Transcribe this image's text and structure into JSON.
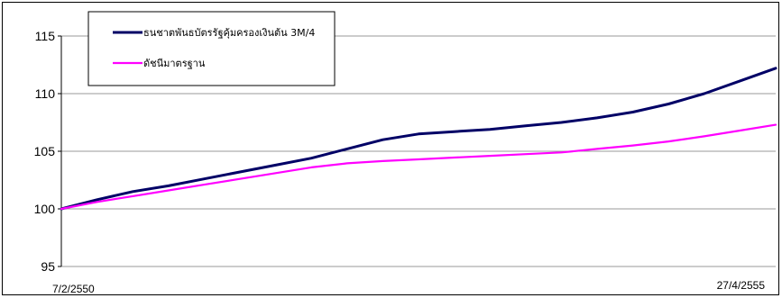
{
  "chart_data": {
    "type": "line",
    "title": "",
    "xlabel": "",
    "ylabel": "",
    "ylim": [
      95,
      115
    ],
    "y_ticks": [
      95,
      100,
      105,
      110,
      115
    ],
    "y_tick_labels": [
      "95",
      "100",
      "105",
      "110",
      "115"
    ],
    "x_tick_labels": [
      "7/2/2550",
      "27/4/2555"
    ],
    "grid": "horizontal",
    "legend_position": "top-left",
    "x": [
      0,
      5,
      10,
      15,
      20,
      25,
      30,
      35,
      40,
      45,
      50,
      55,
      60,
      65,
      70,
      75,
      80,
      85,
      90,
      95,
      100
    ],
    "series": [
      {
        "name": "ธนชาตพันธบัตรรัฐคุ้มครองเงินต้น 3M/4",
        "color": "#000066",
        "values": [
          100.0,
          100.8,
          101.5,
          102.0,
          102.6,
          103.2,
          103.8,
          104.4,
          105.2,
          106.0,
          106.5,
          106.7,
          106.9,
          107.2,
          107.5,
          107.9,
          108.4,
          109.1,
          110.0,
          111.1,
          112.2
        ]
      },
      {
        "name": "ดัชนีมาตรฐาน",
        "color": "#ff00ff",
        "values": [
          100.0,
          100.6,
          101.1,
          101.6,
          102.1,
          102.6,
          103.1,
          103.6,
          103.95,
          104.15,
          104.3,
          104.45,
          104.6,
          104.75,
          104.9,
          105.2,
          105.5,
          105.85,
          106.3,
          106.8,
          107.3
        ]
      }
    ]
  }
}
